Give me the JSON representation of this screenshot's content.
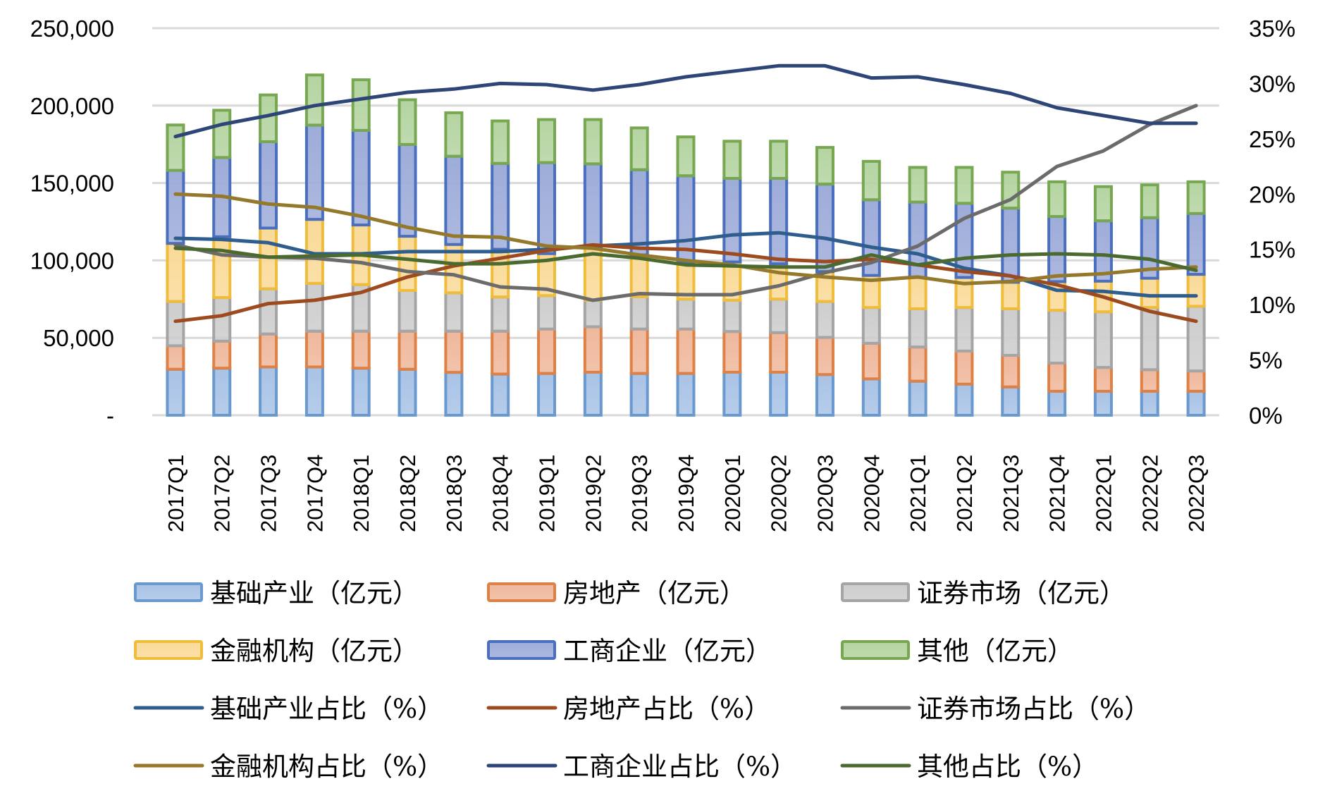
{
  "chart_data": {
    "type": "bar",
    "subtype": "stacked-bar-with-lines",
    "title": "",
    "categories": [
      "2017Q1",
      "2017Q2",
      "2017Q3",
      "2017Q4",
      "2018Q1",
      "2018Q2",
      "2018Q3",
      "2018Q4",
      "2019Q1",
      "2019Q2",
      "2019Q3",
      "2019Q4",
      "2020Q1",
      "2020Q2",
      "2020Q3",
      "2020Q4",
      "2021Q1",
      "2021Q2",
      "2021Q3",
      "2021Q4",
      "2022Q1",
      "2022Q2",
      "2022Q3"
    ],
    "left_axis": {
      "label": "",
      "ylim": [
        0,
        250000
      ],
      "ticks": [
        0,
        50000,
        100000,
        150000,
        200000,
        250000
      ],
      "tick_labels": [
        "-",
        "50,000",
        "100,000",
        "150,000",
        "200,000",
        "250,000"
      ]
    },
    "right_axis": {
      "label": "",
      "ylim": [
        0,
        35
      ],
      "ticks": [
        0,
        5,
        10,
        15,
        20,
        25,
        30,
        35
      ],
      "tick_labels": [
        "0%",
        "5%",
        "10%",
        "15%",
        "20%",
        "25%",
        "30%",
        "35%"
      ]
    },
    "grid": true,
    "legend_position": "bottom",
    "bar_series": [
      {
        "name": "基础产业（亿元）",
        "color": "#6a99d0",
        "fill": "#a9c3e6",
        "values": [
          29700,
          30400,
          31200,
          31200,
          30400,
          29700,
          27700,
          26600,
          27000,
          27800,
          27000,
          27000,
          27800,
          27800,
          26300,
          23500,
          22000,
          20100,
          18300,
          15500,
          15500,
          15500,
          15500
        ]
      },
      {
        "name": "房地产（亿元）",
        "color": "#dd8146",
        "fill": "#efb89c",
        "values": [
          15200,
          17500,
          21300,
          23100,
          23900,
          24600,
          26600,
          27700,
          28700,
          29400,
          28700,
          28700,
          26300,
          25600,
          24000,
          23000,
          22100,
          21400,
          20400,
          18200,
          15400,
          13900,
          13100
        ]
      },
      {
        "name": "证券市场（亿元）",
        "color": "#a5a5a5",
        "fill": "#cdcdcd",
        "values": [
          28600,
          28100,
          29200,
          30900,
          30100,
          26300,
          24800,
          22100,
          21600,
          17100,
          20900,
          19300,
          20200,
          21600,
          23200,
          23100,
          24700,
          28100,
          30100,
          34100,
          35900,
          40200,
          41800
        ]
      },
      {
        "name": "金融机构（亿元）",
        "color": "#f0bc3c",
        "fill": "#f9da98",
        "values": [
          37500,
          39300,
          39200,
          41300,
          38500,
          35000,
          31200,
          30800,
          27100,
          34700,
          27000,
          24000,
          24700,
          22800,
          19300,
          20700,
          20200,
          19400,
          17100,
          18500,
          19800,
          18900,
          20600
        ]
      },
      {
        "name": "工商企业（亿元）",
        "color": "#4a6fbf",
        "fill": "#9eacd9",
        "values": [
          47200,
          51200,
          55800,
          60900,
          61100,
          59300,
          57000,
          55500,
          58800,
          53400,
          55000,
          55700,
          54000,
          55200,
          56500,
          48900,
          48700,
          47900,
          47900,
          42100,
          39000,
          39100,
          39300
        ]
      },
      {
        "name": "其他（亿元）",
        "color": "#78a751",
        "fill": "#b4d4a1",
        "values": [
          29300,
          30500,
          30200,
          32400,
          32700,
          28900,
          28100,
          27400,
          27800,
          28600,
          27000,
          25100,
          24000,
          24000,
          23700,
          24800,
          22400,
          23200,
          23200,
          22400,
          22100,
          21200,
          20500
        ]
      }
    ],
    "line_series": [
      {
        "name": "基础产业占比（%）",
        "color": "#2f5e8e",
        "axis": "right",
        "values": [
          16.0,
          15.9,
          15.6,
          14.6,
          14.6,
          14.8,
          14.8,
          14.8,
          15.0,
          15.3,
          15.5,
          15.8,
          16.3,
          16.5,
          16.0,
          15.2,
          14.6,
          13.3,
          12.6,
          11.3,
          11.2,
          10.8,
          10.8
        ]
      },
      {
        "name": "房地产占比（%）",
        "color": "#9e4a1f",
        "axis": "right",
        "values": [
          8.5,
          9.0,
          10.1,
          10.4,
          11.1,
          12.5,
          13.5,
          14.2,
          14.9,
          15.4,
          15.1,
          15.0,
          14.6,
          14.1,
          13.9,
          14.1,
          13.6,
          13.0,
          12.6,
          11.8,
          10.7,
          9.4,
          8.5
        ]
      },
      {
        "name": "证券市场占比（%）",
        "color": "#6b6b6b",
        "axis": "right",
        "values": [
          15.4,
          14.5,
          14.3,
          14.2,
          13.8,
          13.0,
          12.7,
          11.6,
          11.4,
          10.4,
          11.0,
          10.9,
          10.9,
          11.7,
          12.9,
          13.8,
          15.3,
          17.8,
          19.5,
          22.5,
          23.9,
          26.3,
          28.0
        ]
      },
      {
        "name": "金融机构占比（%）",
        "color": "#94782b",
        "axis": "right",
        "values": [
          20.0,
          19.8,
          19.1,
          18.8,
          18.0,
          17.0,
          16.2,
          16.1,
          15.3,
          15.1,
          14.5,
          14.0,
          13.6,
          12.9,
          12.5,
          12.2,
          12.5,
          11.9,
          12.1,
          12.6,
          12.8,
          13.2,
          13.4
        ]
      },
      {
        "name": "工商企业占比（%）",
        "color": "#2e4578",
        "axis": "right",
        "values": [
          25.2,
          26.3,
          27.1,
          28.0,
          28.6,
          29.2,
          29.5,
          30.0,
          29.9,
          29.4,
          29.9,
          30.6,
          31.1,
          31.6,
          31.6,
          30.5,
          30.6,
          29.9,
          29.1,
          27.8,
          27.1,
          26.4,
          26.4
        ]
      },
      {
        "name": "其他占比（%）",
        "color": "#4a6a30",
        "axis": "right",
        "values": [
          15.1,
          14.9,
          14.3,
          14.4,
          14.5,
          14.1,
          13.7,
          13.7,
          14.0,
          14.6,
          14.2,
          13.6,
          13.5,
          13.4,
          13.4,
          14.5,
          13.6,
          14.2,
          14.5,
          14.6,
          14.5,
          14.1,
          13.1
        ]
      }
    ],
    "legend": [
      "基础产业（亿元）",
      "房地产（亿元）",
      "证券市场（亿元）",
      "金融机构（亿元）",
      "工商企业（亿元）",
      "其他（亿元）",
      "基础产业占比（%）",
      "房地产占比（%）",
      "证券市场占比（%）",
      "金融机构占比（%）",
      "工商企业占比（%）",
      "其他占比（%）"
    ]
  }
}
